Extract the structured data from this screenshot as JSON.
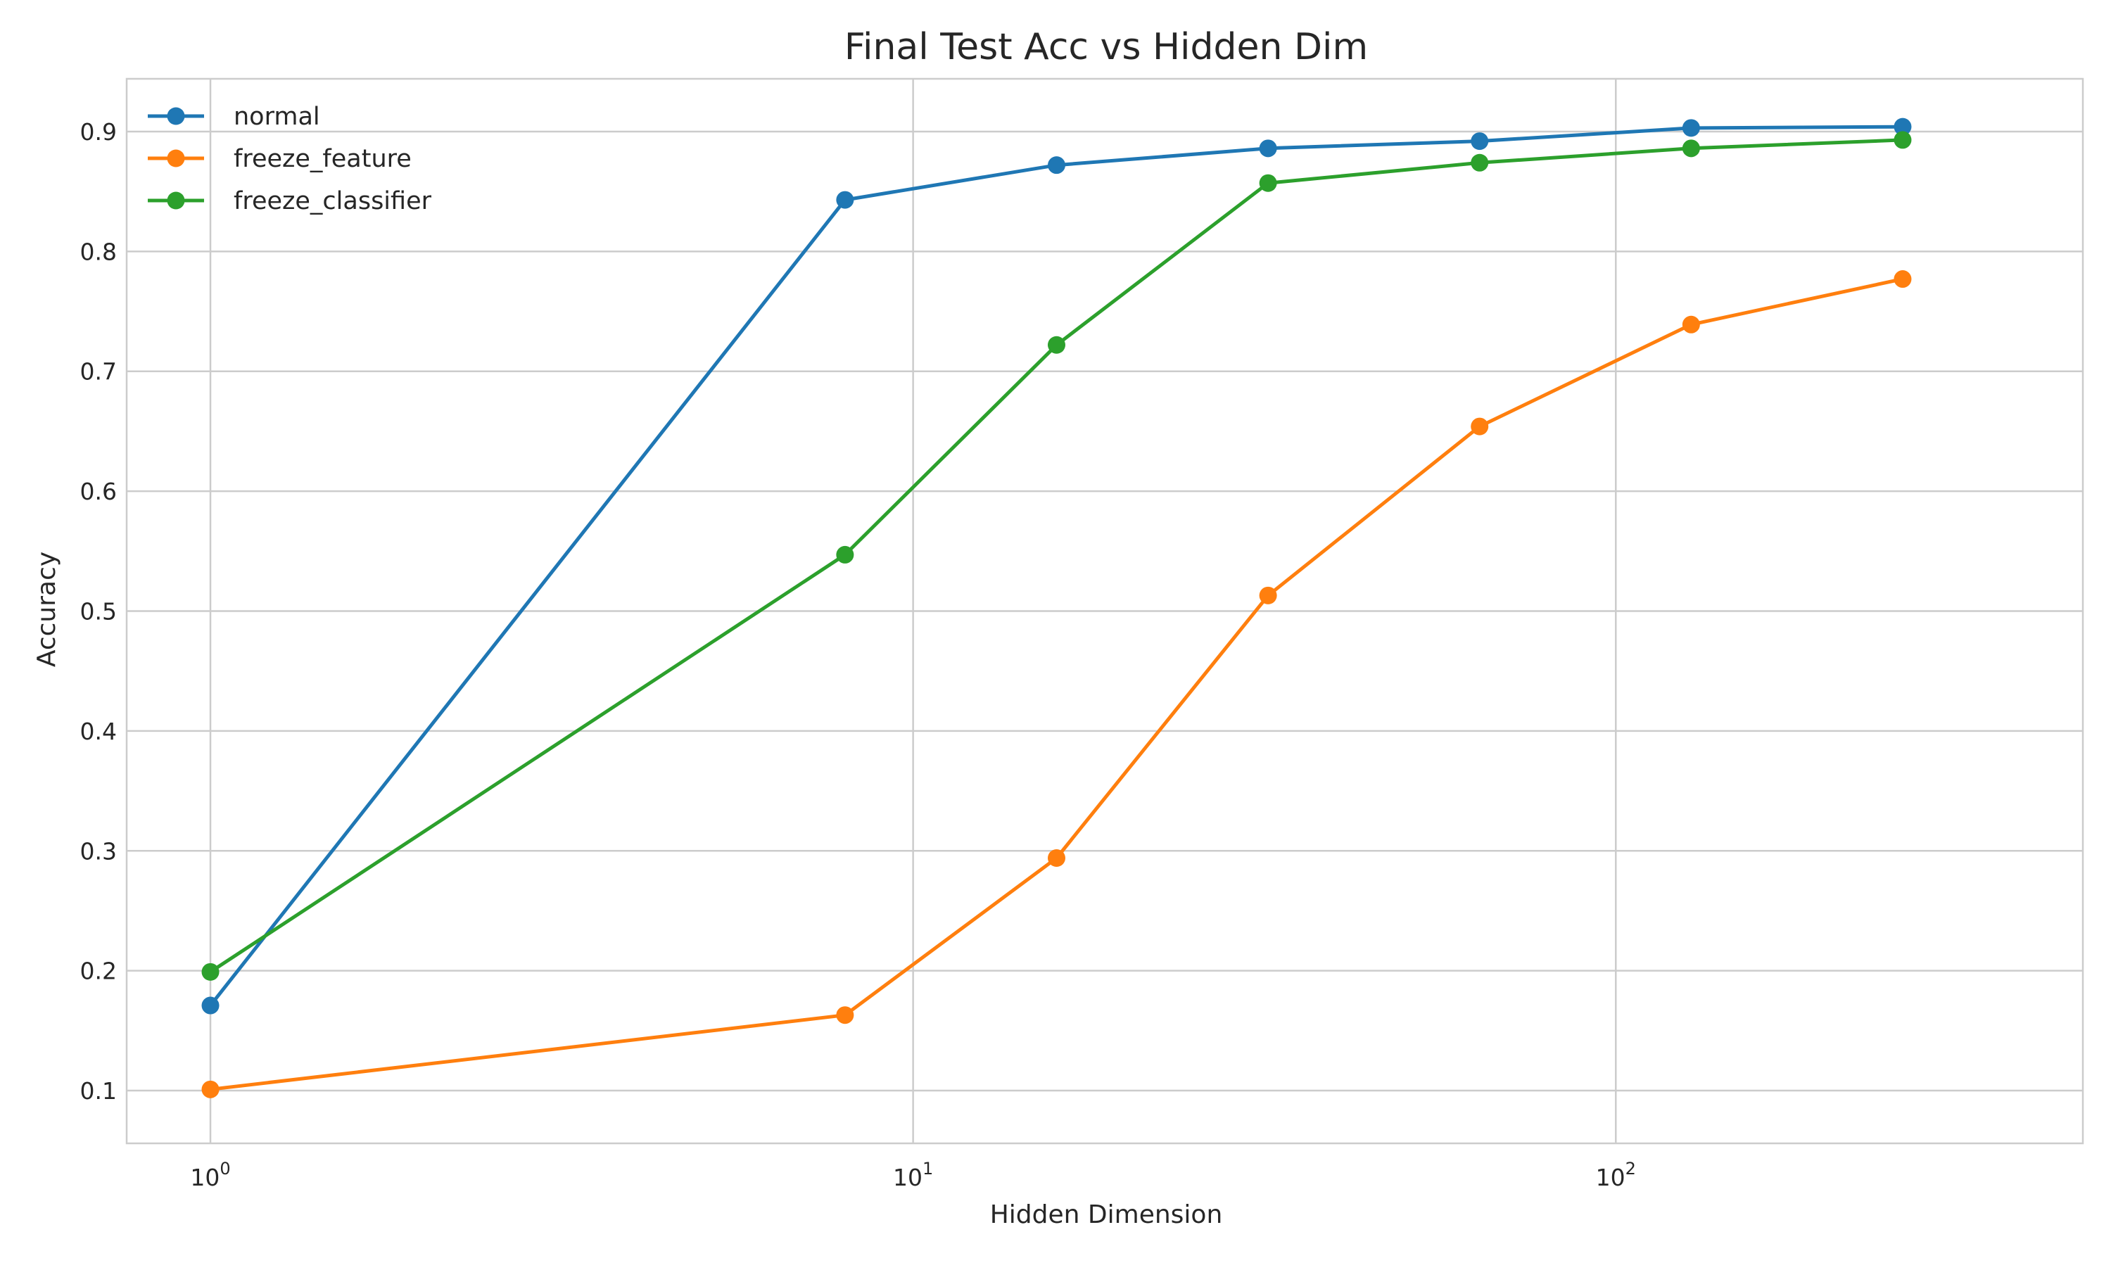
{
  "chart_data": {
    "type": "line",
    "title": "Final Test Acc vs Hidden Dim",
    "xlabel": "Hidden Dimension",
    "ylabel": "Accuracy",
    "x_scale": "log",
    "xlim": [
      0.76,
      462
    ],
    "ylim": [
      0.056,
      0.944
    ],
    "x_ticks": [
      {
        "value": 1,
        "label_base": "10",
        "label_exp": "0"
      },
      {
        "value": 10,
        "label_base": "10",
        "label_exp": "1"
      },
      {
        "value": 100,
        "label_base": "10",
        "label_exp": "2"
      }
    ],
    "y_ticks": [
      0.1,
      0.2,
      0.3,
      0.4,
      0.5,
      0.6,
      0.7,
      0.8,
      0.9
    ],
    "grid": true,
    "legend_position": "upper-left",
    "x": [
      1,
      8,
      16,
      32,
      64,
      128,
      256
    ],
    "series": [
      {
        "name": "normal",
        "color": "#1f77b4",
        "values": [
          0.171,
          0.843,
          0.872,
          0.886,
          0.892,
          0.903,
          0.904
        ]
      },
      {
        "name": "freeze_feature",
        "color": "#ff7f0e",
        "values": [
          0.101,
          0.163,
          0.294,
          0.513,
          0.654,
          0.739,
          0.777
        ]
      },
      {
        "name": "freeze_classifier",
        "color": "#2ca02c",
        "values": [
          0.199,
          0.547,
          0.722,
          0.857,
          0.874,
          0.886,
          0.893
        ]
      }
    ]
  }
}
